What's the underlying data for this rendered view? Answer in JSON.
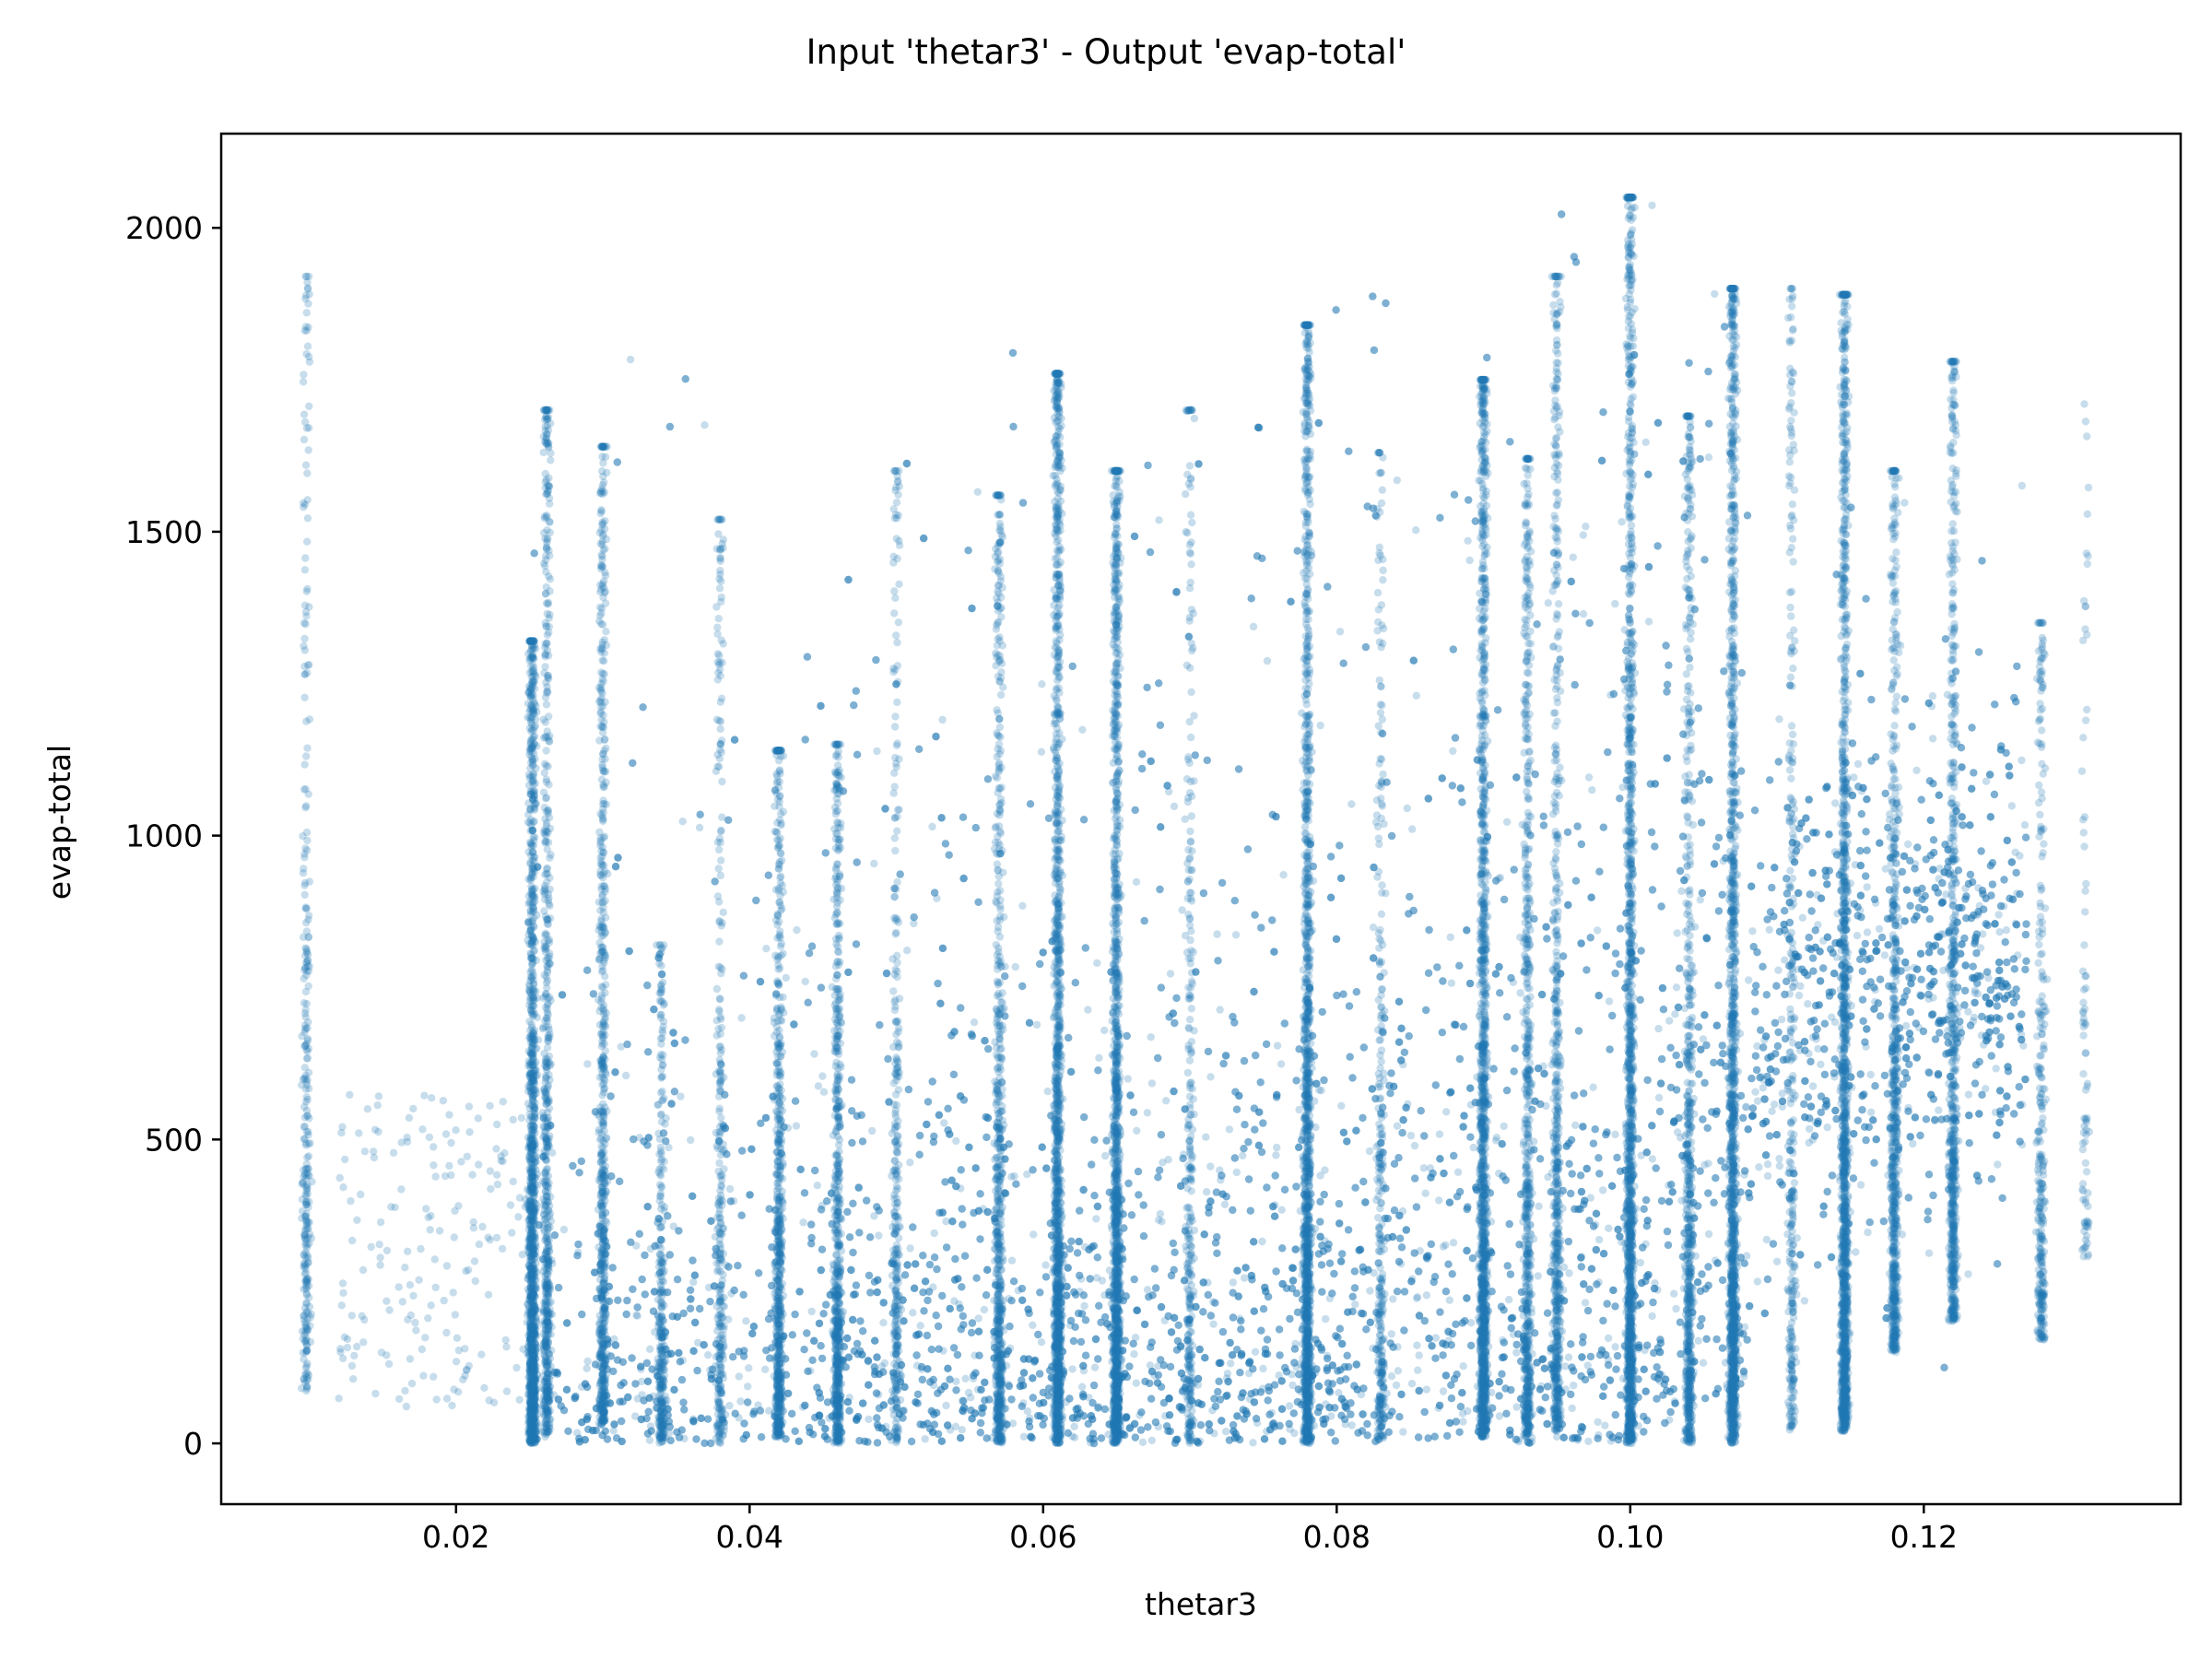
{
  "chart_data": {
    "type": "scatter",
    "title": "Input 'thetar3' - Output 'evap-total'",
    "xlabel": "thetar3",
    "ylabel": "evap-total",
    "xlim": [
      0.004,
      0.1375
    ],
    "ylim": [
      -100,
      2155
    ],
    "x_ticks": [
      0.02,
      0.04,
      0.06,
      0.08,
      0.1,
      0.12
    ],
    "x_tick_labels": [
      "0.02",
      "0.04",
      "0.06",
      "0.08",
      "0.10",
      "0.12"
    ],
    "y_ticks": [
      0,
      500,
      1000,
      1500,
      2000
    ],
    "y_tick_labels": [
      "0",
      "500",
      "1000",
      "1500",
      "2000"
    ],
    "marker_color": "#1f77b4",
    "marker_alpha": 0.25,
    "grid": false,
    "legend": "none",
    "point_count_approx": 40000,
    "series": [
      {
        "columns": [
          {
            "x": 0.0098,
            "y_range": [
              85,
              1920
            ],
            "density": "medium"
          },
          {
            "x": 0.0252,
            "y_range": [
              0,
              1320
            ],
            "density": "very high"
          },
          {
            "x": 0.0262,
            "y_range": [
              10,
              1700
            ],
            "density": "high"
          },
          {
            "x": 0.03,
            "y_range": [
              30,
              1640
            ],
            "density": "high"
          },
          {
            "x": 0.034,
            "y_range": [
              0,
              820
            ],
            "density": "medium"
          },
          {
            "x": 0.038,
            "y_range": [
              0,
              1520
            ],
            "density": "medium"
          },
          {
            "x": 0.042,
            "y_range": [
              10,
              1140
            ],
            "density": "high"
          },
          {
            "x": 0.046,
            "y_range": [
              0,
              1150
            ],
            "density": "high"
          },
          {
            "x": 0.05,
            "y_range": [
              0,
              1600
            ],
            "density": "medium"
          },
          {
            "x": 0.057,
            "y_range": [
              0,
              1560
            ],
            "density": "high"
          },
          {
            "x": 0.061,
            "y_range": [
              0,
              1760
            ],
            "density": "very high"
          },
          {
            "x": 0.065,
            "y_range": [
              0,
              1600
            ],
            "density": "very high"
          },
          {
            "x": 0.07,
            "y_range": [
              0,
              1700
            ],
            "density": "medium"
          },
          {
            "x": 0.078,
            "y_range": [
              0,
              1840
            ],
            "density": "very high"
          },
          {
            "x": 0.083,
            "y_range": [
              0,
              1630
            ],
            "density": "medium"
          },
          {
            "x": 0.09,
            "y_range": [
              10,
              1750
            ],
            "density": "very high"
          },
          {
            "x": 0.093,
            "y_range": [
              10,
              1620
            ],
            "density": "high"
          },
          {
            "x": 0.095,
            "y_range": [
              20,
              1920
            ],
            "density": "high"
          },
          {
            "x": 0.1,
            "y_range": [
              0,
              2050
            ],
            "density": "very high"
          },
          {
            "x": 0.104,
            "y_range": [
              0,
              1690
            ],
            "density": "high"
          },
          {
            "x": 0.107,
            "y_range": [
              0,
              1900
            ],
            "density": "very high"
          },
          {
            "x": 0.111,
            "y_range": [
              20,
              1900
            ],
            "density": "medium"
          },
          {
            "x": 0.1146,
            "y_range": [
              20,
              1890
            ],
            "density": "very high"
          },
          {
            "x": 0.118,
            "y_range": [
              150,
              1600
            ],
            "density": "high"
          },
          {
            "x": 0.122,
            "y_range": [
              200,
              1780
            ],
            "density": "high"
          },
          {
            "x": 0.128,
            "y_range": [
              170,
              1350
            ],
            "density": "medium"
          },
          {
            "x": 0.131,
            "y_range": [
              300,
              1710
            ],
            "density": "low"
          }
        ],
        "background_trend": [
          {
            "x": 0.02,
            "y_typical": [
              0,
              600
            ]
          },
          {
            "x": 0.04,
            "y_typical": [
              0,
              700
            ]
          },
          {
            "x": 0.06,
            "y_typical": [
              0,
              750
            ]
          },
          {
            "x": 0.08,
            "y_typical": [
              0,
              900
            ]
          },
          {
            "x": 0.1,
            "y_typical": [
              0,
              1300
            ]
          },
          {
            "x": 0.12,
            "y_typical": [
              250,
              1500
            ]
          }
        ]
      }
    ]
  }
}
